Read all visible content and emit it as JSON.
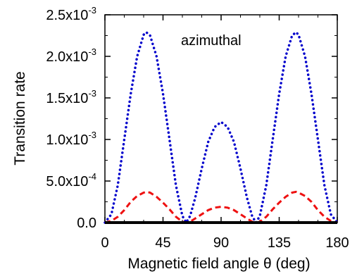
{
  "chart_data": {
    "type": "line",
    "xlabel": "Magnetic field angle  θ (deg)",
    "ylabel": "Transition rate",
    "annotation": "azimuthal",
    "xlim": [
      0,
      180
    ],
    "ylim": [
      0,
      0.0025
    ],
    "x_ticks": [
      0,
      45,
      90,
      135,
      180
    ],
    "x_tick_labels": [
      "0",
      "45",
      "90",
      "135",
      "180"
    ],
    "y_ticks": [
      0,
      0.0005,
      0.001,
      0.0015,
      0.002,
      0.0025
    ],
    "y_tick_labels": [
      {
        "mantissa": "0.0",
        "exponent": ""
      },
      {
        "mantissa": "5.0x10",
        "exponent": "-4"
      },
      {
        "mantissa": "1.0x10",
        "exponent": "-3"
      },
      {
        "mantissa": "1.5x10",
        "exponent": "-3"
      },
      {
        "mantissa": "2.0x10",
        "exponent": "-3"
      },
      {
        "mantissa": "2.5x10",
        "exponent": "-3"
      }
    ],
    "grid": false,
    "series": [
      {
        "color": "#0000cc",
        "style": "dotted",
        "x": [
          0,
          5,
          10,
          15,
          20,
          25,
          30,
          32,
          35,
          40,
          45,
          50,
          55,
          60,
          63,
          66,
          70,
          75,
          80,
          85,
          90,
          95,
          100,
          105,
          110,
          114,
          117,
          120,
          125,
          130,
          135,
          140,
          145,
          148,
          150,
          155,
          160,
          165,
          170,
          175,
          180
        ],
        "y": [
          0,
          0.0001,
          0.00045,
          0.001,
          0.00155,
          0.002,
          0.00226,
          0.00229,
          0.00225,
          0.002,
          0.00155,
          0.001,
          0.00045,
          8e-05,
          0,
          8e-05,
          0.0003,
          0.00065,
          0.00097,
          0.00115,
          0.00121,
          0.00115,
          0.00097,
          0.00065,
          0.0003,
          8e-05,
          0,
          8e-05,
          0.00045,
          0.001,
          0.00155,
          0.002,
          0.00225,
          0.00229,
          0.00226,
          0.002,
          0.00155,
          0.001,
          0.00045,
          0.0001,
          0
        ]
      },
      {
        "color": "#ee1111",
        "style": "dashed",
        "x": [
          0,
          5,
          10,
          15,
          20,
          25,
          30,
          32,
          35,
          40,
          45,
          50,
          55,
          60,
          63,
          66,
          70,
          75,
          80,
          85,
          90,
          95,
          100,
          105,
          110,
          114,
          117,
          120,
          125,
          130,
          135,
          140,
          145,
          148,
          150,
          155,
          160,
          165,
          170,
          175,
          180
        ],
        "y": [
          0,
          2e-05,
          7e-05,
          0.00015,
          0.00025,
          0.00032,
          0.00036,
          0.00037,
          0.00036,
          0.00031,
          0.00024,
          0.00016,
          7e-05,
          1e-05,
          0,
          1e-05,
          5e-05,
          0.0001,
          0.00015,
          0.00018,
          0.00019,
          0.00018,
          0.00015,
          0.0001,
          5e-05,
          1e-05,
          0,
          1e-05,
          7e-05,
          0.00016,
          0.00024,
          0.00031,
          0.00036,
          0.00037,
          0.00036,
          0.00032,
          0.00025,
          0.00015,
          7e-05,
          2e-05,
          0
        ]
      },
      {
        "color": "#000000",
        "style": "solid",
        "x": [
          0,
          180
        ],
        "y": [
          0,
          0
        ]
      }
    ]
  }
}
